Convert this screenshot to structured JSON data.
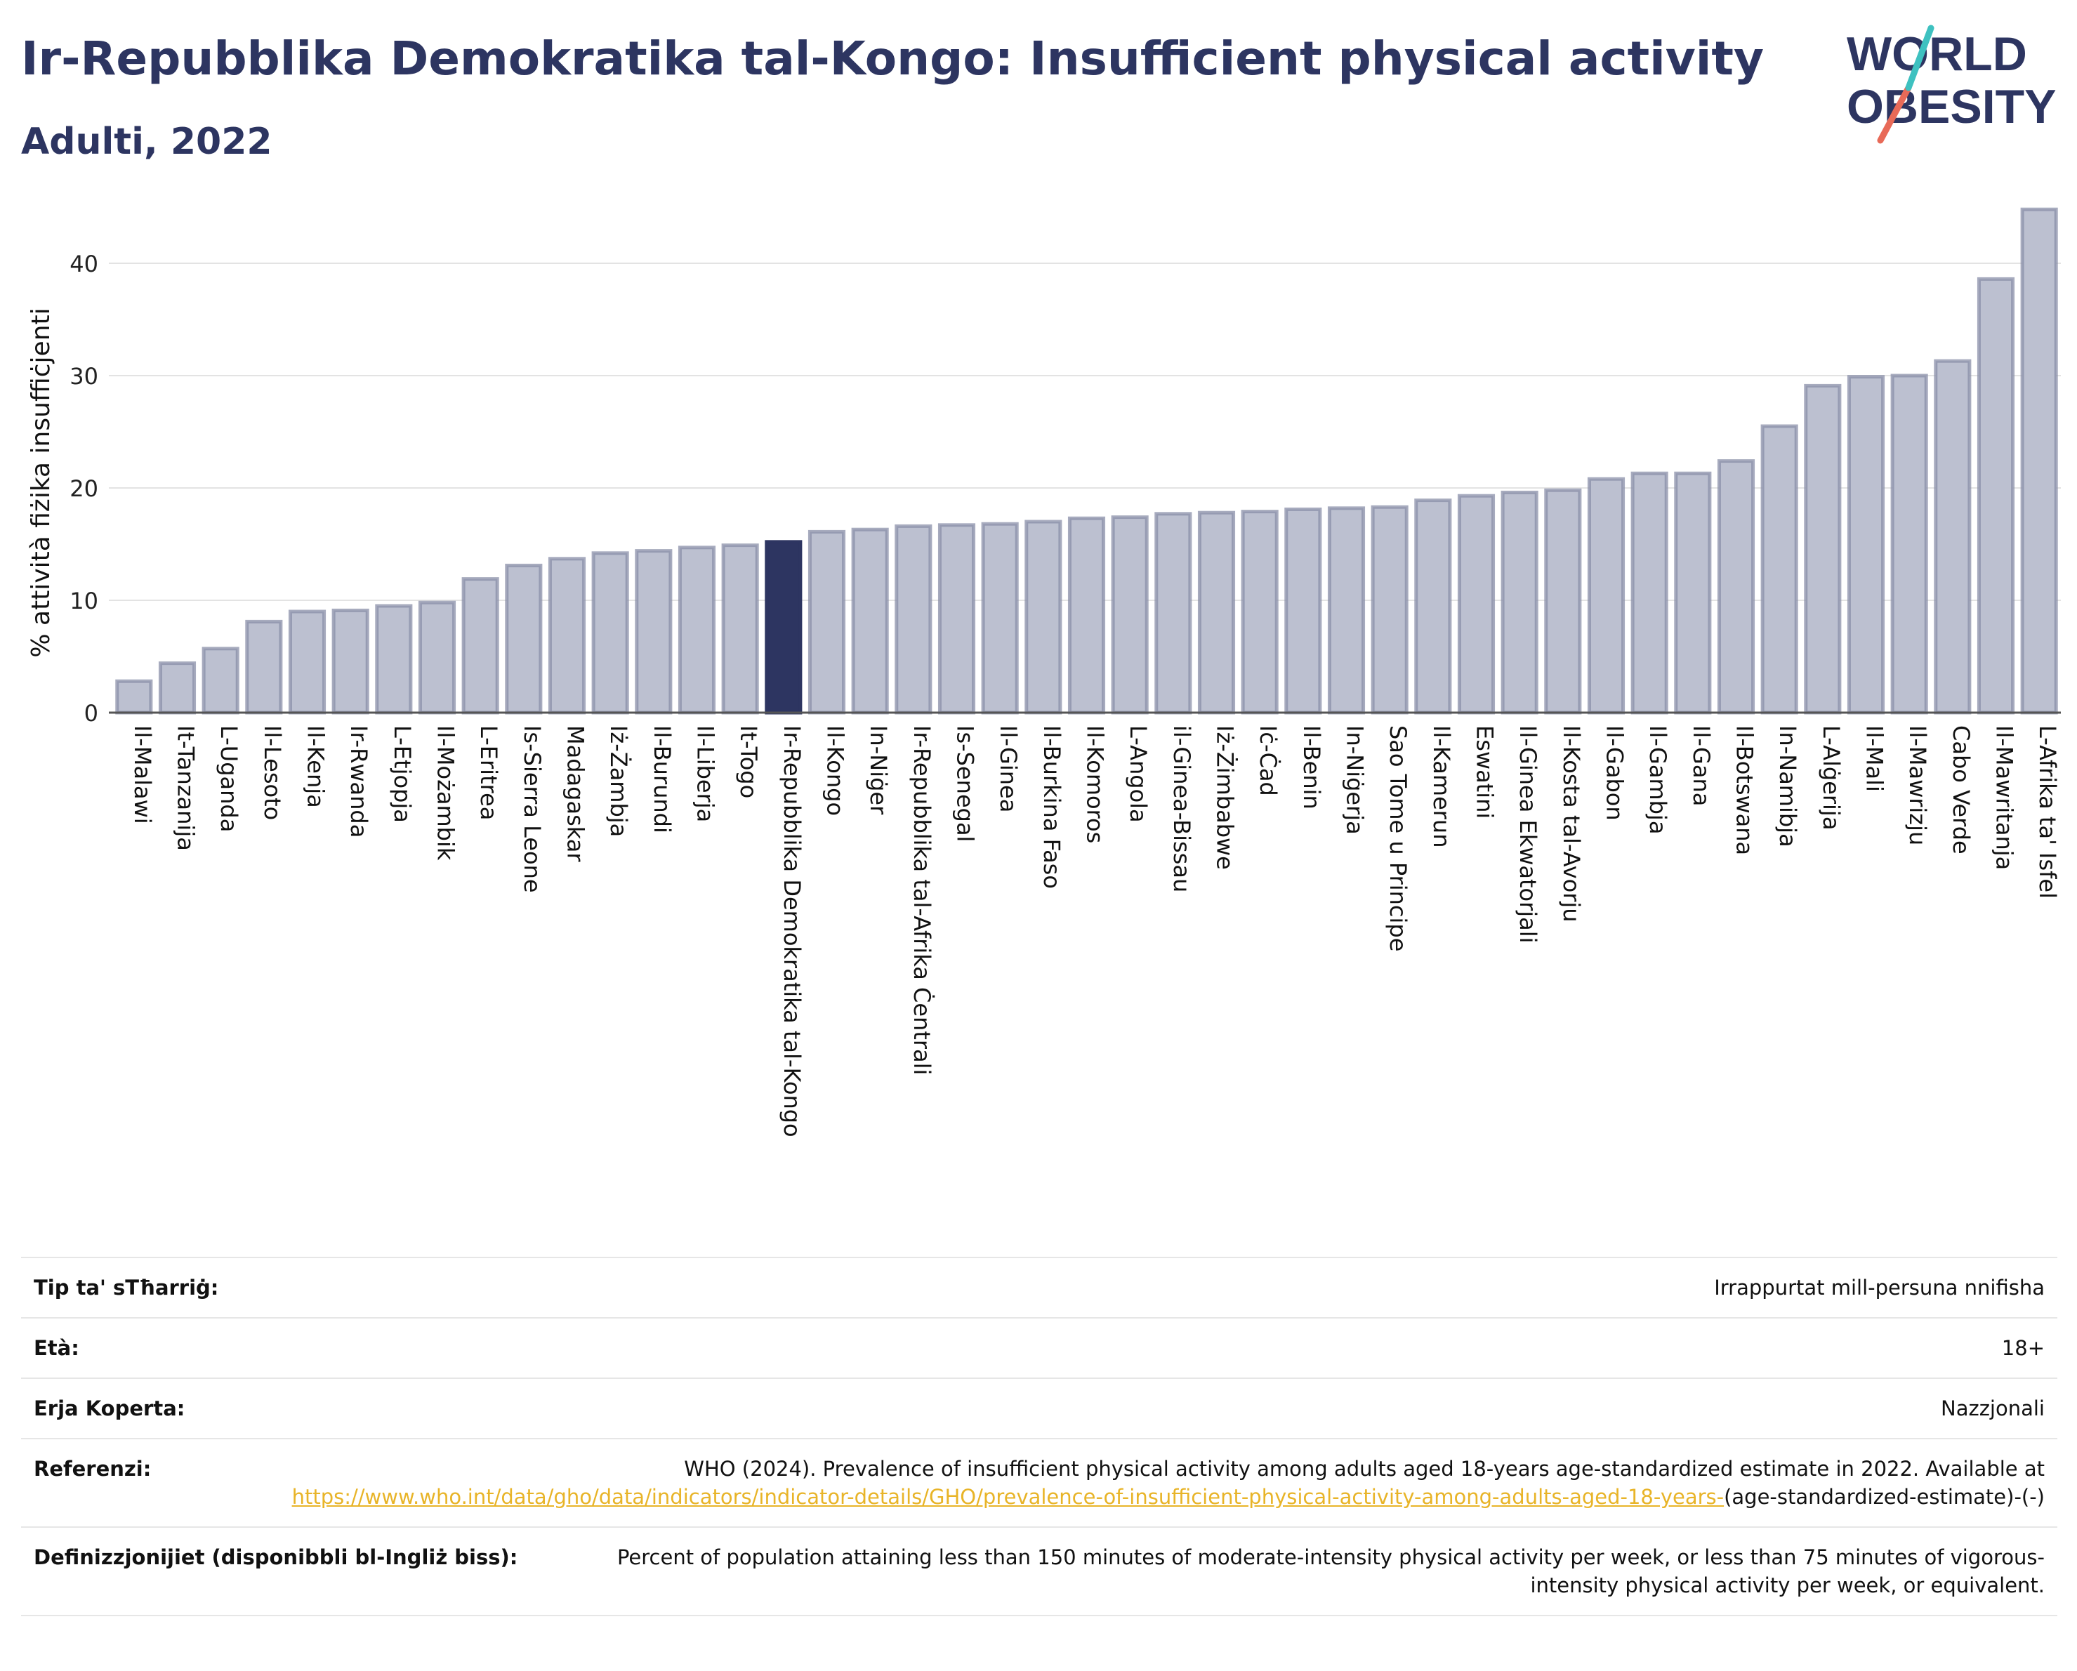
{
  "header": {
    "title": "Ir-Repubblika Demokratika tal-Kongo: Insufficient physical activity",
    "subtitle": "Adulti, 2022"
  },
  "logo": {
    "line1": "WORLD",
    "line2": "OBESITY"
  },
  "colors": {
    "bar": "#bcc0d0",
    "bar_stroke": "#8a8fa8",
    "highlight": "#2d3561",
    "title": "#2d3561",
    "link": "#e8b428"
  },
  "chart_data": {
    "type": "bar",
    "ylabel": "% attività fiżika insuffiċjenti",
    "ylim": [
      0,
      45
    ],
    "yticks": [
      0,
      10,
      20,
      30,
      40
    ],
    "grid": true,
    "highlight": "Ir-Repubblika Demokratika tal-Kongo",
    "categories": [
      "Il-Malawi",
      "It-Tanzanija",
      "L-Uganda",
      "Il-Lesoto",
      "Il-Kenja",
      "Ir-Rwanda",
      "L-Etjopja",
      "Il-Możambik",
      "L-Eritrea",
      "Is-Sierra Leone",
      "Madagaskar",
      "Iż-Żambja",
      "Il-Burundi",
      "Il-Liberja",
      "It-Togo",
      "Ir-Repubblika Demokratika tal-Kongo",
      "Il-Kongo",
      "In-Niġer",
      "Ir-Repubblika tal-Afrika Ċentrali",
      "Is-Senegal",
      "Il-Ginea",
      "Il-Burkina Faso",
      "Il-Komoros",
      "L-Angola",
      "il-Ginea-Bissau",
      "Iż-Żimbabwe",
      "Iċ-Ċad",
      "Il-Benin",
      "In-Niġerja",
      "Sao Tome u Principe",
      "Il-Kamerun",
      "Eswatini",
      "Il-Ginea Ekwatorjali",
      "Il-Kosta tal-Avorju",
      "Il-Gabon",
      "Il-Gambja",
      "Il-Gana",
      "Il-Botswana",
      "In-Namibja",
      "L-Alġerija",
      "Il-Mali",
      "Il-Mawrizju",
      "Cabo Verde",
      "Il-Mawritanja",
      "L-Afrika ta' Isfel"
    ],
    "values": [
      2.8,
      4.4,
      5.7,
      8.1,
      9.0,
      9.1,
      9.5,
      9.8,
      11.9,
      13.1,
      13.7,
      14.2,
      14.4,
      14.7,
      14.9,
      15.2,
      16.1,
      16.3,
      16.6,
      16.7,
      16.8,
      17.0,
      17.3,
      17.4,
      17.7,
      17.8,
      17.9,
      18.1,
      18.2,
      18.3,
      18.9,
      19.3,
      19.6,
      19.8,
      20.8,
      21.3,
      21.3,
      22.4,
      25.5,
      29.1,
      29.9,
      30.0,
      31.3,
      38.6,
      44.8
    ]
  },
  "meta": [
    {
      "key": "Tip ta' sTħarriġ:",
      "value": "Irrappurtat mill-persuna nnifisha"
    },
    {
      "key": "Età:",
      "value": "18+"
    },
    {
      "key": "Erja Koperta:",
      "value": "Nazzjonali"
    },
    {
      "key": "Referenzi:",
      "value": "WHO (2024). Prevalence of insufficient physical activity among adults aged 18-years age-standardized estimate in 2022. Available at",
      "link": "https://www.who.int/data/gho/data/indicators/indicator-details/GHO/prevalence-of-insufficient-physical-activity-among-adults-aged-18-years-",
      "suffix": "(age-standardized-estimate)-(-)"
    },
    {
      "key": "Definizzjonijiet (disponibbli bl-Ingliż biss):",
      "value": "Percent of population attaining less than 150 minutes of moderate-intensity physical activity per week, or less than 75 minutes of vigorous-intensity physical activity per week, or equivalent."
    }
  ]
}
